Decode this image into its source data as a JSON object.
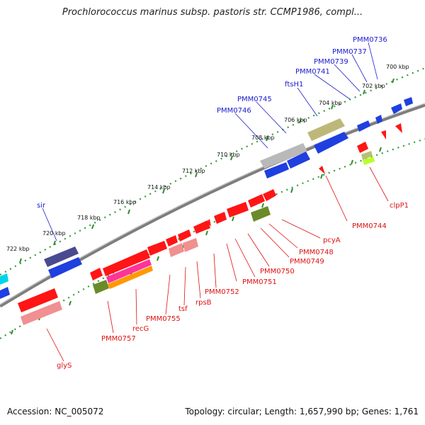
{
  "title": "Prochlorococcus marinus subsp. pastoris str. CCMP1986, compl...",
  "footer": {
    "accession": "Accession: NC_005072",
    "topology": "Topology: circular; Length: 1,657,990 bp; Genes: 1,761"
  },
  "colors": {
    "backbone": "#8a8a8a",
    "tick": "#2f8f2f",
    "forward_label": "#1a1acc",
    "reverse_label": "#dd1111"
  },
  "scale_labels": [
    "700 kbp",
    "702 kbp",
    "704 kbp",
    "706 kbp",
    "708 kbp",
    "710 kbp",
    "712 kbp",
    "714 kbp",
    "716 kbp",
    "718 kbp",
    "720 kbp",
    "722 kbp"
  ],
  "forward_labels": [
    "PMM0736",
    "PMM0737",
    "PMM0739",
    "PMM0741",
    "ftsH1",
    "PMM0745",
    "PMM0746",
    "sir"
  ],
  "reverse_labels": [
    "clpP1",
    "PMM0744",
    "pcyA",
    "PMM0748",
    "PMM0749",
    "PMM0750",
    "PMM0751",
    "PMM0752",
    "rpsB",
    "tsf",
    "PMM0755",
    "recG",
    "PMM0757",
    "glyS"
  ]
}
